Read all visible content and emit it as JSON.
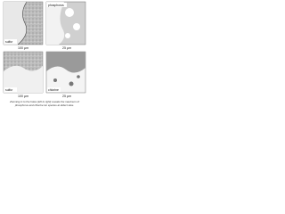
{
  "panels": [
    {
      "label": "sulfur"
    },
    {
      "label": "phosphorus"
    },
    {
      "label": "sulfur"
    },
    {
      "label": "chlorine"
    }
  ],
  "scale_bars": [
    "100 µm",
    "25 µm",
    "100 µm",
    "25 µm"
  ],
  "caption": [
    "Zooming in to the holes (left to right) reveals the maximum of",
    "phosphorus and chlorine ion species at defect sites."
  ]
}
